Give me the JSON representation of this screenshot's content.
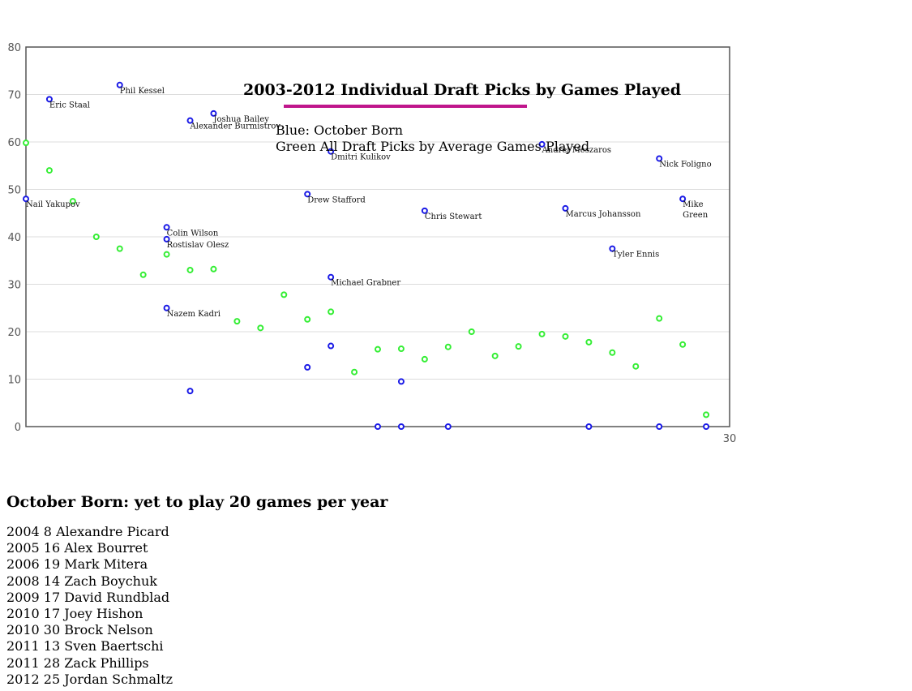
{
  "chart_data": {
    "type": "scatter",
    "title": "2003-2012 Individual Draft Picks by Games Played",
    "legend": [
      "Blue: October Born",
      "Green All Draft Picks by Average Games Played"
    ],
    "xlim": [
      0,
      30
    ],
    "ylim": [
      0,
      80
    ],
    "y_ticks": [
      0,
      10,
      20,
      30,
      40,
      50,
      60,
      70,
      80
    ],
    "x_tick_labels": [
      "30"
    ],
    "grid": "horizontal",
    "colors": {
      "october": "#1a1ae6",
      "average": "#33ee33",
      "underline": "#c0168c"
    },
    "series": [
      {
        "name": "October Born",
        "points": [
          {
            "x": 0,
            "y": 48,
            "label": "Nail Yakupov"
          },
          {
            "x": 1,
            "y": 69,
            "label": "Eric Staal"
          },
          {
            "x": 4,
            "y": 72,
            "label": "Phil Kessel"
          },
          {
            "x": 6,
            "y": 42,
            "label": "Colin Wilson"
          },
          {
            "x": 6,
            "y": 39.5,
            "label": "Rostislav Olesz"
          },
          {
            "x": 6,
            "y": 25,
            "label": "Nazem Kadri"
          },
          {
            "x": 7,
            "y": 64.5,
            "label": "Alexander Burmistrov"
          },
          {
            "x": 7,
            "y": 7.5,
            "label": ""
          },
          {
            "x": 8,
            "y": 66,
            "label": "Joshua Bailey"
          },
          {
            "x": 12,
            "y": 49,
            "label": "Drew Stafford"
          },
          {
            "x": 12,
            "y": 12.5,
            "label": ""
          },
          {
            "x": 13,
            "y": 58,
            "label": "Dmitri Kulikov"
          },
          {
            "x": 13,
            "y": 31.5,
            "label": "Michael Grabner"
          },
          {
            "x": 13,
            "y": 17,
            "label": ""
          },
          {
            "x": 15,
            "y": 0,
            "label": ""
          },
          {
            "x": 16,
            "y": 9.5,
            "label": ""
          },
          {
            "x": 16,
            "y": 0,
            "label": ""
          },
          {
            "x": 17,
            "y": 45.5,
            "label": "Chris Stewart"
          },
          {
            "x": 18,
            "y": 0,
            "label": ""
          },
          {
            "x": 22,
            "y": 59.5,
            "label": "Andrej Meszaros"
          },
          {
            "x": 23,
            "y": 46,
            "label": "Marcus Johansson"
          },
          {
            "x": 24,
            "y": 0,
            "label": ""
          },
          {
            "x": 25,
            "y": 37.5,
            "label": "Tyler Ennis"
          },
          {
            "x": 27,
            "y": 56.5,
            "label": "Nick Foligno"
          },
          {
            "x": 27,
            "y": 0,
            "label": ""
          },
          {
            "x": 28,
            "y": 48,
            "label": "Mike Green"
          },
          {
            "x": 29,
            "y": 0,
            "label": ""
          }
        ]
      },
      {
        "name": "All Draft Picks by Average Games Played",
        "points": [
          {
            "x": 0,
            "y": 59.8
          },
          {
            "x": 1,
            "y": 54
          },
          {
            "x": 2,
            "y": 47.5
          },
          {
            "x": 3,
            "y": 40
          },
          {
            "x": 4,
            "y": 37.5
          },
          {
            "x": 5,
            "y": 32
          },
          {
            "x": 6,
            "y": 36.3
          },
          {
            "x": 7,
            "y": 33
          },
          {
            "x": 8,
            "y": 33.2
          },
          {
            "x": 9,
            "y": 22.2
          },
          {
            "x": 10,
            "y": 20.8
          },
          {
            "x": 11,
            "y": 27.8
          },
          {
            "x": 12,
            "y": 22.6
          },
          {
            "x": 13,
            "y": 24.2
          },
          {
            "x": 14,
            "y": 11.5
          },
          {
            "x": 15,
            "y": 16.3
          },
          {
            "x": 16,
            "y": 16.4
          },
          {
            "x": 17,
            "y": 14.2
          },
          {
            "x": 18,
            "y": 16.8
          },
          {
            "x": 19,
            "y": 20
          },
          {
            "x": 20,
            "y": 14.9
          },
          {
            "x": 21,
            "y": 16.9
          },
          {
            "x": 22,
            "y": 19.5
          },
          {
            "x": 23,
            "y": 19
          },
          {
            "x": 24,
            "y": 17.8
          },
          {
            "x": 25,
            "y": 15.6
          },
          {
            "x": 26,
            "y": 12.7
          },
          {
            "x": 27,
            "y": 22.8
          },
          {
            "x": 28,
            "y": 17.3
          },
          {
            "x": 29,
            "y": 2.5
          }
        ]
      }
    ]
  },
  "notes": {
    "heading": "October Born: yet to play 20 games per year",
    "rows": [
      "2004 8 Alexandre Picard",
      "2005 16 Alex Bourret",
      "2006 19 Mark Mitera",
      "2008 14 Zach Boychuk",
      "2009 17 David Rundblad",
      "2010 17 Joey Hishon",
      "2010 30 Brock Nelson",
      "2011 13 Sven Baertschi",
      "2011 28 Zack Phillips",
      "2012 25 Jordan Schmaltz"
    ]
  }
}
